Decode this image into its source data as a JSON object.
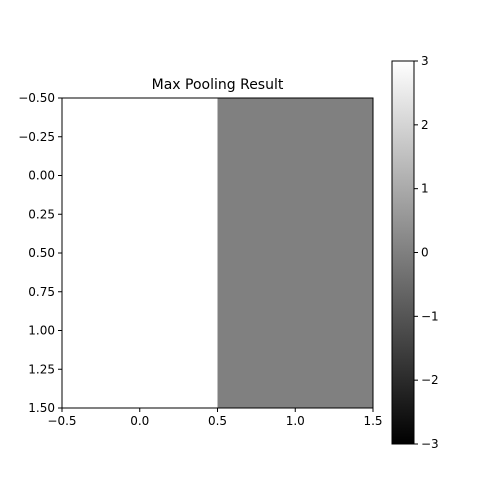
{
  "chart_data": {
    "type": "heatmap",
    "title": "Max Pooling Result",
    "xlabel": "",
    "ylabel": "",
    "values": [
      [
        3,
        0
      ],
      [
        3,
        0
      ]
    ],
    "xlim": [
      -0.5,
      1.5
    ],
    "ylim": [
      1.5,
      -0.5
    ],
    "xticks": [
      -0.5,
      0.0,
      0.5,
      1.0,
      1.5
    ],
    "xtick_labels": [
      "−0.5",
      "0.0",
      "0.5",
      "1.0",
      "1.5"
    ],
    "yticks": [
      -0.5,
      -0.25,
      0.0,
      0.25,
      0.5,
      0.75,
      1.0,
      1.25,
      1.5
    ],
    "ytick_labels": [
      "−0.50",
      "−0.25",
      "0.00",
      "0.25",
      "0.50",
      "0.75",
      "1.00",
      "1.25",
      "1.50"
    ],
    "colormap": "gray",
    "vmin": -3,
    "vmax": 3,
    "colorbar_ticks": [
      3,
      2,
      1,
      0,
      -1,
      -2,
      -3
    ],
    "colorbar_tick_labels": [
      "3",
      "2",
      "1",
      "0",
      "−1",
      "−2",
      "−3"
    ],
    "grid": false
  }
}
